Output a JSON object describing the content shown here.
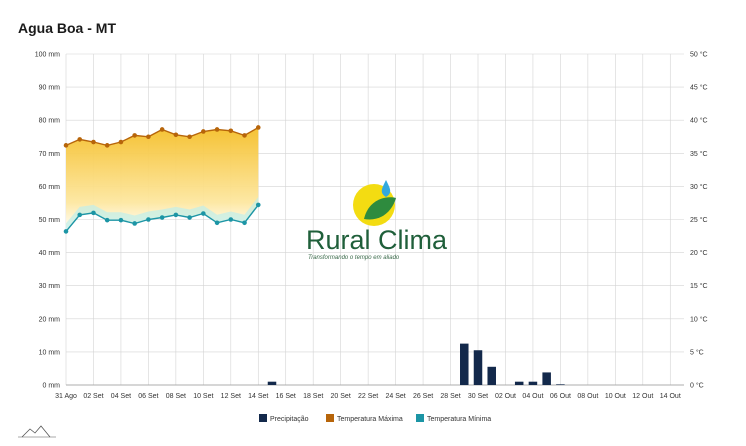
{
  "page_title": "Agua Boa - MT",
  "logo": {
    "name": "Rural Clima",
    "tagline": "Transformando o tempo em aliado"
  },
  "colors": {
    "precip": "#13294b",
    "tmax": "#b7650a",
    "tmin": "#1c95a5",
    "band_top": "#f5bf2a",
    "band_bottom": "#fff3bf",
    "grid": "#d4d4d4",
    "logo_sun": "#f3dc12",
    "logo_leaf": "#2e8b3e",
    "logo_drop": "#33a9dd"
  },
  "chart_data": {
    "type": "bar+line",
    "x": [
      "31 Ago",
      "01 Set",
      "02 Set",
      "03 Set",
      "04 Set",
      "05 Set",
      "06 Set",
      "07 Set",
      "08 Set",
      "09 Set",
      "10 Set",
      "11 Set",
      "12 Set",
      "13 Set",
      "14 Set",
      "15 Set",
      "16 Set",
      "17 Set",
      "18 Set",
      "19 Set",
      "20 Set",
      "21 Set",
      "22 Set",
      "23 Set",
      "24 Set",
      "25 Set",
      "26 Set",
      "27 Set",
      "28 Set",
      "29 Set",
      "30 Set",
      "01 Out",
      "02 Out",
      "03 Out",
      "04 Out",
      "05 Out",
      "06 Out",
      "07 Out",
      "08 Out",
      "09 Out",
      "10 Out",
      "11 Out",
      "12 Out",
      "13 Out",
      "14 Out",
      "15 Out"
    ],
    "x_tick_labels": [
      "31 Ago",
      "02 Set",
      "04 Set",
      "06 Set",
      "08 Set",
      "10 Set",
      "12 Set",
      "14 Set",
      "16 Set",
      "18 Set",
      "20 Set",
      "22 Set",
      "24 Set",
      "26 Set",
      "28 Set",
      "30 Set",
      "02 Out",
      "04 Out",
      "06 Out",
      "08 Out",
      "10 Out",
      "12 Out",
      "14 Out"
    ],
    "y_left": {
      "ticks": [
        "0 mm",
        "10 mm",
        "20 mm",
        "30 mm",
        "40 mm",
        "50 mm",
        "60 mm",
        "70 mm",
        "80 mm",
        "90 mm",
        "100 mm"
      ],
      "range": [
        0,
        100
      ]
    },
    "y_right": {
      "ticks": [
        "0 °C",
        "5 °C",
        "10 °C",
        "15 °C",
        "20 °C",
        "25 °C",
        "30 °C",
        "35 °C",
        "40 °C",
        "45 °C",
        "50 °C"
      ],
      "range": [
        0,
        50
      ]
    },
    "series": [
      {
        "name": "Precipitação",
        "kind": "bar",
        "axis": "left",
        "values": [
          0,
          0,
          0,
          0,
          0,
          0,
          0,
          0,
          0,
          0,
          0,
          0,
          0,
          0,
          0,
          1,
          0,
          0,
          0,
          0,
          0,
          0,
          0,
          0,
          0,
          0,
          0,
          0,
          0,
          12.5,
          10.5,
          5.5,
          0,
          1,
          1,
          3.8,
          0.2,
          0,
          0,
          0,
          0,
          0,
          0,
          0,
          0,
          0
        ]
      },
      {
        "name": "Temperatura Máxima",
        "kind": "line",
        "axis": "right",
        "values": [
          36.2,
          37.1,
          36.7,
          36.2,
          36.7,
          37.7,
          37.5,
          38.6,
          37.8,
          37.5,
          38.3,
          38.6,
          38.4,
          37.7,
          38.9,
          null,
          null,
          null,
          null,
          null,
          null,
          null,
          null,
          null,
          null,
          null,
          null,
          null,
          null,
          null,
          null,
          null,
          null,
          null,
          null,
          null,
          null,
          null,
          null,
          null,
          null,
          null,
          null,
          null,
          null,
          null
        ]
      },
      {
        "name": "Temperatura Mínima",
        "kind": "line",
        "axis": "right",
        "values": [
          23.2,
          25.7,
          26.0,
          24.9,
          24.9,
          24.4,
          25.0,
          25.3,
          25.7,
          25.3,
          25.9,
          24.5,
          25.0,
          24.5,
          27.2,
          null,
          null,
          null,
          null,
          null,
          null,
          null,
          null,
          null,
          null,
          null,
          null,
          null,
          null,
          null,
          null,
          null,
          null,
          null,
          null,
          null,
          null,
          null,
          null,
          null,
          null,
          null,
          null,
          null,
          null,
          null
        ]
      }
    ],
    "legend_position": "bottom",
    "grid": true
  }
}
